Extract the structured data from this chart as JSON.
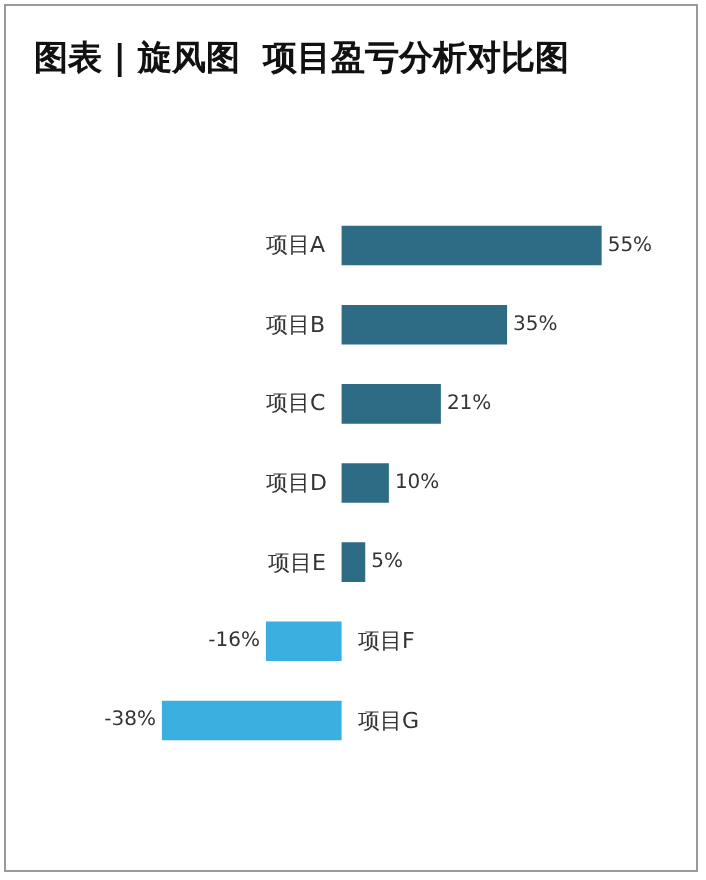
{
  "chart_data": {
    "type": "bar",
    "title": "图表 | 旋风图  项目盈亏分析对比图",
    "orientation": "horizontal",
    "categories": [
      "项目A",
      "项目B",
      "项目C",
      "项目D",
      "项目E",
      "项目F",
      "项目G"
    ],
    "values": [
      55,
      35,
      21,
      10,
      5,
      -16,
      -38
    ],
    "value_labels": [
      "55%",
      "35%",
      "21%",
      "10%",
      "5%",
      "-16%",
      "-38%"
    ],
    "colors": [
      "#2e6b85",
      "#2e6b85",
      "#2e6b85",
      "#2e6b85",
      "#2e6b85",
      "#3aafe0",
      "#3aafe0"
    ],
    "data_labels": true
  }
}
